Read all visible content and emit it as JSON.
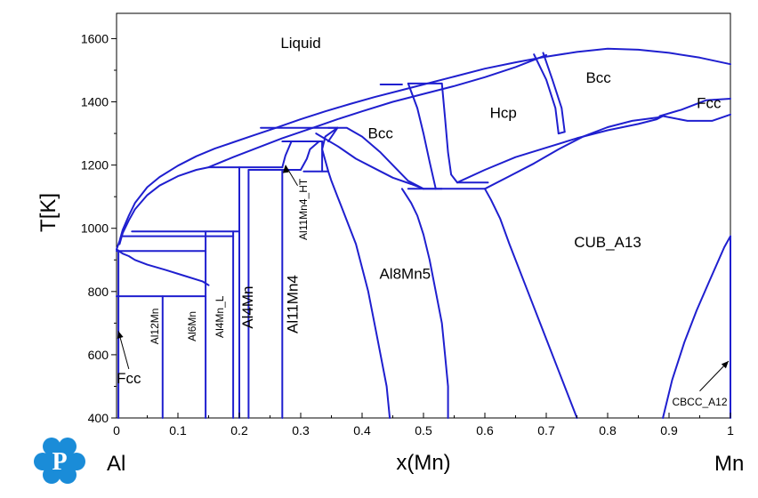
{
  "chart_data": {
    "type": "line",
    "title": "",
    "xlabel": "x(Mn)",
    "ylabel": "T[K]",
    "xlim": [
      0,
      1
    ],
    "ylim": [
      400,
      1680
    ],
    "x_ticks": [
      "0",
      "0.1",
      "0.2",
      "0.3",
      "0.4",
      "0.5",
      "0.6",
      "0.7",
      "0.8",
      "0.9",
      "1"
    ],
    "y_ticks": [
      "400",
      "600",
      "800",
      "1000",
      "1200",
      "1400",
      "1600"
    ],
    "end_labels": {
      "left": "Al",
      "right": "Mn"
    },
    "line_color": "#1f1fcf",
    "grid": false,
    "regions": [
      {
        "label": "Liquid",
        "x": 0.3,
        "y": 1570
      },
      {
        "label": "Bcc",
        "x": 0.43,
        "y": 1285
      },
      {
        "label": "Hcp",
        "x": 0.63,
        "y": 1350
      },
      {
        "label": "Bcc",
        "x": 0.785,
        "y": 1460
      },
      {
        "label": "Fcc",
        "x": 0.965,
        "y": 1380
      },
      {
        "label": "CUB_A13",
        "x": 0.8,
        "y": 940
      },
      {
        "label": "Al8Mn5",
        "x": 0.47,
        "y": 840
      }
    ],
    "vertical_labels": [
      {
        "label": "Al12Mn",
        "x": 0.068,
        "y": 690
      },
      {
        "label": "Al6Mn",
        "x": 0.129,
        "y": 690
      },
      {
        "label": "Al4Mn_L",
        "x": 0.174,
        "y": 720
      },
      {
        "label": "Al4Mn",
        "x": 0.222,
        "y": 750
      },
      {
        "label": "Al11Mn4",
        "x": 0.295,
        "y": 760
      },
      {
        "label": "Al11Mn4_HT",
        "x": 0.31,
        "y": 1060
      }
    ],
    "annotations": [
      {
        "label": "Fcc",
        "x": 0.02,
        "y": 510,
        "arrow_to": [
          0.003,
          675
        ]
      },
      {
        "label": "CBCC_A12",
        "x": 0.95,
        "y": 440,
        "arrow_to": [
          0.997,
          580
        ]
      }
    ],
    "series": [
      {
        "x": [
          0,
          0.005,
          0.01,
          0.02,
          0.03,
          0.05,
          0.07,
          0.1,
          0.13,
          0.16,
          0.19,
          0.22,
          0.26,
          0.3,
          0.34,
          0.38,
          0.42,
          0.46,
          0.5,
          0.55,
          0.6,
          0.65,
          0.7,
          0.75,
          0.8,
          0.85,
          0.9,
          0.95,
          1.0
        ],
        "y": [
          933,
          960,
          995,
          1040,
          1080,
          1130,
          1162,
          1198,
          1228,
          1252,
          1272,
          1292,
          1318,
          1345,
          1370,
          1393,
          1415,
          1435,
          1455,
          1480,
          1505,
          1525,
          1543,
          1558,
          1568,
          1565,
          1555,
          1540,
          1519
        ]
      },
      {
        "x": [
          0.005,
          0.01,
          0.02,
          0.03,
          0.05,
          0.07,
          0.1,
          0.13,
          0.15,
          0.19,
          0.23,
          0.27,
          0.32,
          0.36,
          0.4,
          0.45,
          0.5,
          0.55,
          0.6,
          0.65,
          0.7
        ],
        "y": [
          950,
          985,
          1025,
          1060,
          1105,
          1135,
          1165,
          1185,
          1193,
          1225,
          1255,
          1285,
          1318,
          1345,
          1370,
          1400,
          1425,
          1450,
          1478,
          1510,
          1548
        ]
      },
      {
        "x": [
          0.003,
          0.003,
          0.0,
          0.01,
          0.02,
          0.03,
          0.05,
          0.08,
          0.11,
          0.14,
          0.15
        ],
        "y": [
          400,
          930,
          933,
          920,
          912,
          900,
          885,
          868,
          850,
          832,
          820
        ]
      },
      {
        "x": [
          0.0,
          0.145
        ],
        "y": [
          785,
          785
        ]
      },
      {
        "x": [
          0.075,
          0.075
        ],
        "y": [
          400,
          785
        ]
      },
      {
        "x": [
          0.0,
          0.145
        ],
        "y": [
          928,
          928
        ]
      },
      {
        "x": [
          0.145,
          0.145
        ],
        "y": [
          400,
          990
        ]
      },
      {
        "x": [
          0.01,
          0.19
        ],
        "y": [
          975,
          975
        ]
      },
      {
        "x": [
          0.025,
          0.2
        ],
        "y": [
          990,
          990
        ]
      },
      {
        "x": [
          0.19,
          0.19
        ],
        "y": [
          400,
          990
        ]
      },
      {
        "x": [
          0.2,
          0.2
        ],
        "y": [
          400,
          1193
        ]
      },
      {
        "x": [
          0.15,
          0.27
        ],
        "y": [
          1193,
          1193
        ]
      },
      {
        "x": [
          0.215,
          0.215
        ],
        "y": [
          400,
          1185
        ]
      },
      {
        "x": [
          0.215,
          0.3
        ],
        "y": [
          1185,
          1185
        ]
      },
      {
        "x": [
          0.27,
          0.27
        ],
        "y": [
          400,
          1185
        ]
      },
      {
        "x": [
          0.27,
          0.275,
          0.285
        ],
        "y": [
          1193,
          1230,
          1275
        ]
      },
      {
        "x": [
          0.3,
          0.31,
          0.315,
          0.33
        ],
        "y": [
          1185,
          1220,
          1250,
          1275
        ]
      },
      {
        "x": [
          0.27,
          0.335
        ],
        "y": [
          1275,
          1275
        ]
      },
      {
        "x": [
          0.335,
          0.335
        ],
        "y": [
          1180,
          1275
        ]
      },
      {
        "x": [
          0.305,
          0.345
        ],
        "y": [
          1180,
          1180
        ]
      },
      {
        "x": [
          0.235,
          0.36
        ],
        "y": [
          1318,
          1318
        ]
      },
      {
        "x": [
          0.345,
          0.36
        ],
        "y": [
          1275,
          1318
        ]
      },
      {
        "x": [
          0.36,
          0.34,
          0.335,
          0.345
        ],
        "y": [
          1318,
          1290,
          1250,
          1180
        ]
      },
      {
        "x": [
          0.345,
          0.375,
          0.4,
          0.43,
          0.455,
          0.475,
          0.5,
          0.53
        ],
        "y": [
          1318,
          1318,
          1290,
          1240,
          1190,
          1150,
          1125,
          1125
        ]
      },
      {
        "x": [
          0.325,
          0.36,
          0.39,
          0.42,
          0.45,
          0.48,
          0.5
        ],
        "y": [
          1300,
          1260,
          1220,
          1190,
          1160,
          1140,
          1125
        ]
      },
      {
        "x": [
          0.43,
          0.465
        ],
        "y": [
          1455,
          1455
        ]
      },
      {
        "x": [
          0.475,
          0.53
        ],
        "y": [
          1458,
          1458
        ]
      },
      {
        "x": [
          0.475,
          0.49,
          0.5,
          0.51,
          0.52
        ],
        "y": [
          1458,
          1380,
          1300,
          1210,
          1125
        ]
      },
      {
        "x": [
          0.53,
          0.535,
          0.54,
          0.545,
          0.555
        ],
        "y": [
          1458,
          1350,
          1240,
          1170,
          1145
        ]
      },
      {
        "x": [
          0.555,
          0.605
        ],
        "y": [
          1145,
          1145
        ]
      },
      {
        "x": [
          0.475,
          0.6
        ],
        "y": [
          1125,
          1125
        ]
      },
      {
        "x": [
          0.555,
          0.6,
          0.65,
          0.7,
          0.75,
          0.8,
          0.85,
          0.88,
          0.89
        ],
        "y": [
          1145,
          1185,
          1225,
          1255,
          1285,
          1310,
          1330,
          1345,
          1355
        ]
      },
      {
        "x": [
          0.6,
          0.64,
          0.68,
          0.72,
          0.76,
          0.8,
          0.84,
          0.88,
          0.89
        ],
        "y": [
          1125,
          1165,
          1205,
          1250,
          1290,
          1320,
          1340,
          1350,
          1355
        ]
      },
      {
        "x": [
          0.68,
          0.7,
          0.715,
          0.72
        ],
        "y": [
          1550,
          1470,
          1380,
          1300
        ]
      },
      {
        "x": [
          0.695,
          0.71,
          0.725,
          0.73
        ],
        "y": [
          1555,
          1470,
          1380,
          1305
        ]
      },
      {
        "x": [
          0.72,
          0.73
        ],
        "y": [
          1300,
          1305
        ]
      },
      {
        "x": [
          0.885,
          0.92,
          0.96,
          1.0
        ],
        "y": [
          1355,
          1375,
          1405,
          1410
        ]
      },
      {
        "x": [
          0.89,
          0.93,
          0.97,
          1.0
        ],
        "y": [
          1355,
          1340,
          1340,
          1360
        ]
      },
      {
        "x": [
          0.445,
          0.44,
          0.425,
          0.41,
          0.39,
          0.37,
          0.36,
          0.35,
          0.345
        ],
        "y": [
          400,
          500,
          650,
          800,
          950,
          1050,
          1100,
          1150,
          1180
        ]
      },
      {
        "x": [
          0.54,
          0.54,
          0.535,
          0.53,
          0.52,
          0.51,
          0.5,
          0.49,
          0.48,
          0.47,
          0.465
        ],
        "y": [
          400,
          500,
          600,
          700,
          800,
          900,
          980,
          1040,
          1080,
          1110,
          1125
        ]
      },
      {
        "x": [
          0.75,
          0.72,
          0.69,
          0.67,
          0.64,
          0.625,
          0.61,
          0.6
        ],
        "y": [
          400,
          550,
          700,
          800,
          950,
          1030,
          1090,
          1125
        ]
      },
      {
        "x": [
          0.89,
          0.905,
          0.925,
          0.945,
          0.965,
          0.99,
          1.0
        ],
        "y": [
          400,
          520,
          640,
          740,
          830,
          940,
          975
        ]
      },
      {
        "x": [
          1.0,
          1.0
        ],
        "y": [
          400,
          975
        ]
      }
    ]
  }
}
